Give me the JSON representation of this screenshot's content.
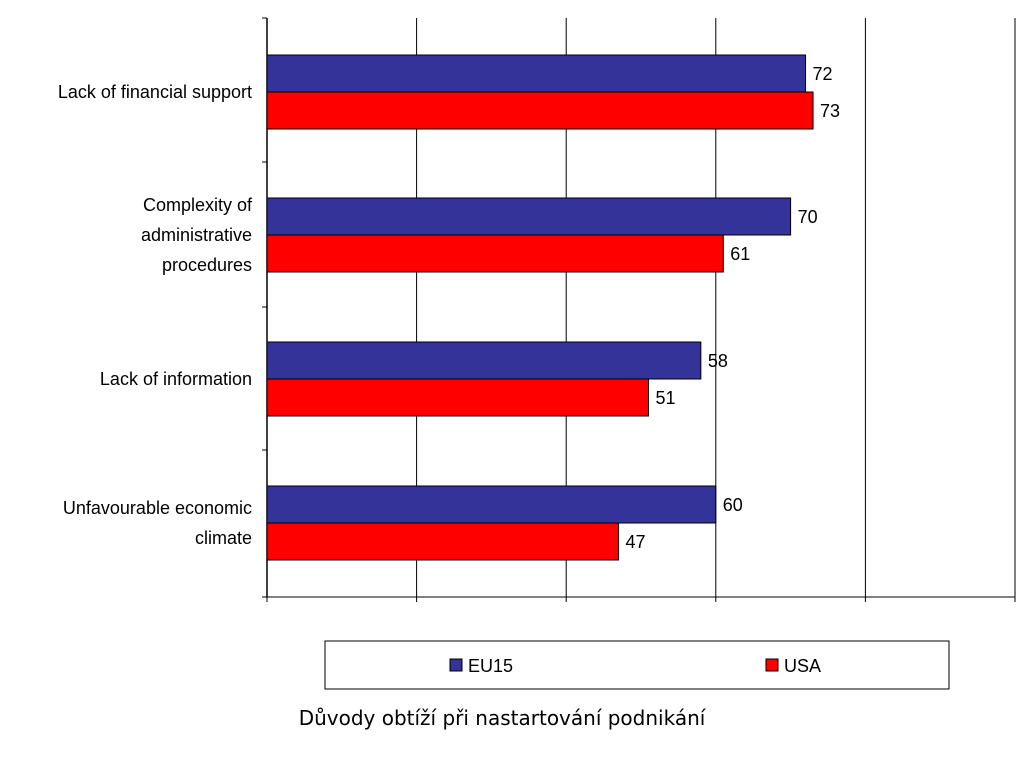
{
  "chart_data": {
    "type": "bar",
    "orientation": "horizontal",
    "categories": [
      [
        "Lack of financial support"
      ],
      [
        "Complexity of",
        "administrative",
        "procedures"
      ],
      [
        "Lack of information"
      ],
      [
        "Unfavourable economic",
        "climate"
      ]
    ],
    "series": [
      {
        "name": "EU15",
        "values": [
          72,
          70,
          58,
          60
        ],
        "color": "#333399"
      },
      {
        "name": "USA",
        "values": [
          73,
          61,
          51,
          47
        ],
        "color": "#ff0000"
      }
    ],
    "xlim": [
      0,
      100
    ],
    "xticks": [
      0,
      20,
      40,
      60,
      80,
      100
    ],
    "grid": true,
    "legend_position": "bottom"
  },
  "caption": "Důvody obtíží při nastartování podnikání"
}
